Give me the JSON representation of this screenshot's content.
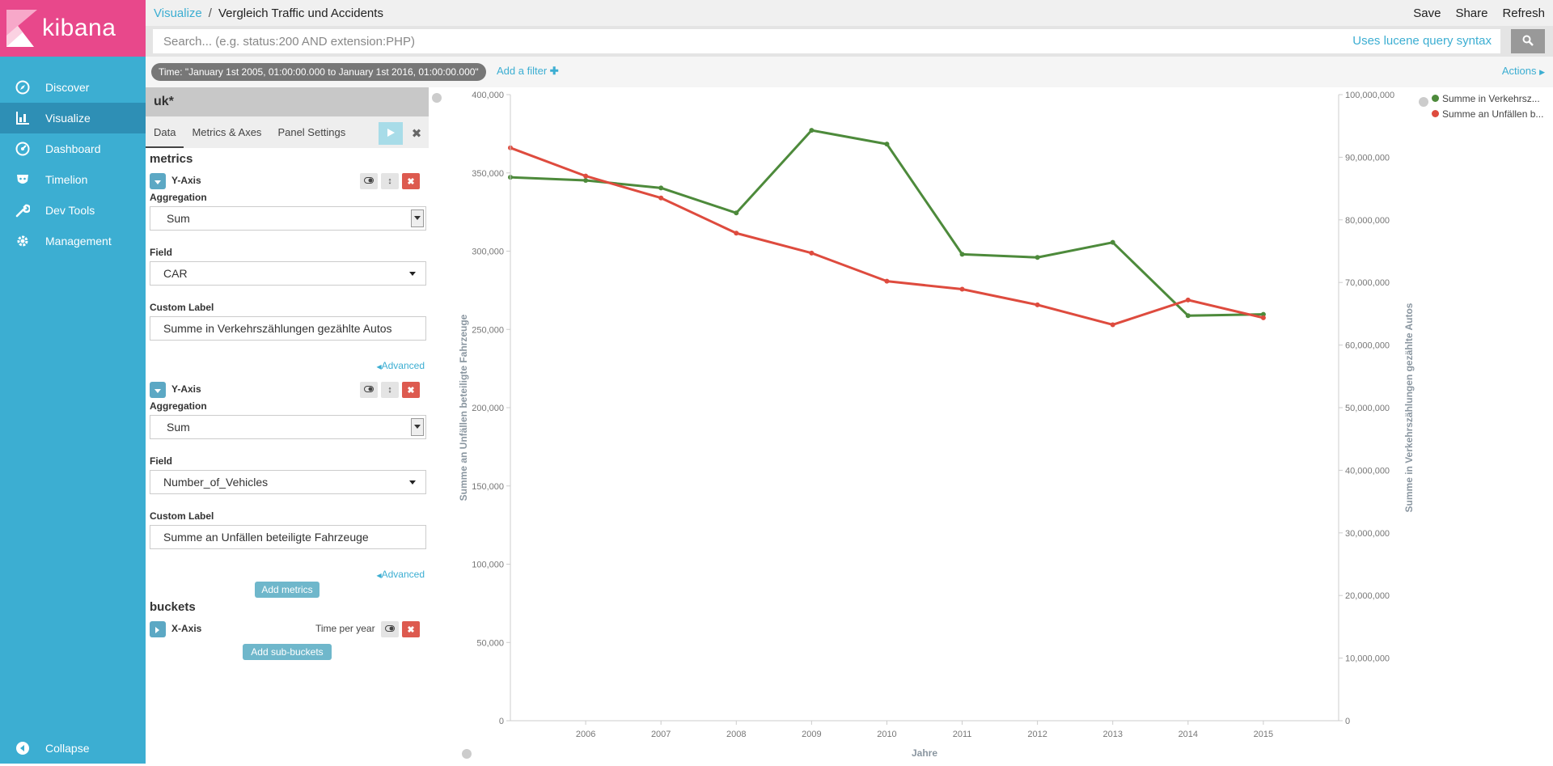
{
  "app": {
    "name": "kibana"
  },
  "sidebar": {
    "items": [
      {
        "label": "Discover",
        "icon": "compass-icon"
      },
      {
        "label": "Visualize",
        "icon": "bar-chart-icon"
      },
      {
        "label": "Dashboard",
        "icon": "dashboard-icon"
      },
      {
        "label": "Timelion",
        "icon": "timelion-icon"
      },
      {
        "label": "Dev Tools",
        "icon": "wrench-icon"
      },
      {
        "label": "Management",
        "icon": "gear-icon"
      }
    ],
    "collapse_label": "Collapse",
    "active": "Visualize"
  },
  "breadcrumb": {
    "parent": "Visualize",
    "separator": "/",
    "current": "Vergleich Traffic und Accidents"
  },
  "top_actions": {
    "save": "Save",
    "share": "Share",
    "refresh": "Refresh"
  },
  "search": {
    "placeholder": "Search... (e.g. status:200 AND extension:PHP)",
    "syntax_link": "Uses lucene query syntax"
  },
  "filter_bar": {
    "time": "Time: \"January 1st 2005, 01:00:00.000 to January 1st 2016, 01:00:00.000\"",
    "add_filter": "Add a filter",
    "actions": "Actions"
  },
  "editor": {
    "index": "uk*",
    "tabs": [
      "Data",
      "Metrics & Axes",
      "Panel Settings"
    ],
    "metrics_title": "metrics",
    "metrics": [
      {
        "axis": "Y-Axis",
        "aggregation_label": "Aggregation",
        "aggregation": "Sum",
        "field_label": "Field",
        "field": "CAR",
        "custom_label_label": "Custom Label",
        "custom_label": "Summe in Verkehrszählungen gezählte Autos",
        "advanced": "Advanced"
      },
      {
        "axis": "Y-Axis",
        "aggregation_label": "Aggregation",
        "aggregation": "Sum",
        "field_label": "Field",
        "field": "Number_of_Vehicles",
        "custom_label_label": "Custom Label",
        "custom_label": "Summe an Unfällen beteiligte Fahrzeuge",
        "advanced": "Advanced"
      }
    ],
    "add_metrics": "Add metrics",
    "buckets_title": "buckets",
    "bucket": {
      "axis": "X-Axis",
      "desc": "Time per year"
    },
    "add_sub_buckets": "Add sub-buckets"
  },
  "colors": {
    "green": "#4d8a3b",
    "red": "#de4b3e",
    "accent": "#3caed2",
    "sidebar": "#3caed2",
    "logo": "#e8488b"
  },
  "legend": [
    {
      "label": "Summe in Verkehrsz...",
      "color": "#4d8a3b"
    },
    {
      "label": "Summe an Unfällen b...",
      "color": "#de4b3e"
    }
  ],
  "chart_data": {
    "type": "line",
    "xlabel": "Jahre",
    "x": [
      2005,
      2006,
      2007,
      2008,
      2009,
      2010,
      2011,
      2012,
      2013,
      2014,
      2015
    ],
    "xticks": [
      "2006",
      "2007",
      "2008",
      "2009",
      "2010",
      "2011",
      "2012",
      "2013",
      "2014",
      "2015"
    ],
    "xlim": [
      2005,
      2016
    ],
    "left_axis": {
      "label": "Summe an Unfällen beteiligte Fahrzeuge",
      "ylim": [
        0,
        400000
      ],
      "ticks": [
        "0",
        "50,000",
        "100,000",
        "150,000",
        "200,000",
        "250,000",
        "300,000",
        "350,000",
        "400,000"
      ]
    },
    "right_axis": {
      "label": "Summe in Verkehrszählungen gezählte Autos",
      "ylim": [
        0,
        100000000
      ],
      "ticks": [
        "0",
        "10,000,000",
        "20,000,000",
        "30,000,000",
        "40,000,000",
        "50,000,000",
        "60,000,000",
        "70,000,000",
        "80,000,000",
        "90,000,000",
        "100,000,000"
      ]
    },
    "series": [
      {
        "name": "Summe in Verkehrszählungen gezählte Autos",
        "axis": "right",
        "color": "#4d8a3b",
        "values": [
          86800000,
          86300000,
          85100000,
          81100000,
          94300000,
          92100000,
          74500000,
          74000000,
          76400000,
          64700000,
          64900000
        ]
      },
      {
        "name": "Summe an Unfällen beteiligte Fahrzeuge",
        "axis": "left",
        "color": "#de4b3e",
        "values": [
          366000,
          348000,
          334000,
          311500,
          298800,
          280800,
          275700,
          265700,
          253000,
          268800,
          257400
        ]
      }
    ]
  }
}
